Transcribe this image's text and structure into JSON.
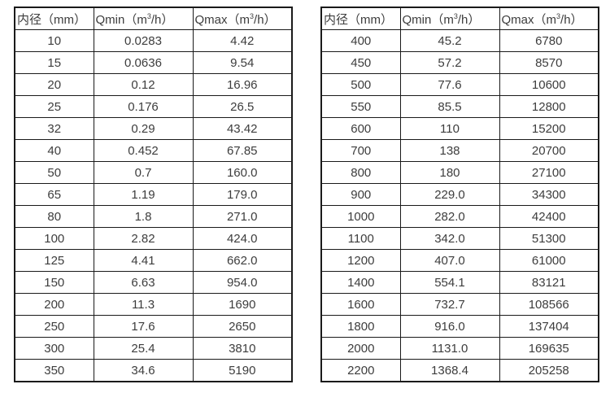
{
  "page": {
    "background_color": "#ffffff",
    "text_color": "#3d3d3d",
    "border_color": "#1a1a1a"
  },
  "tables": [
    {
      "headers": [
        {
          "pre": "内径（mm）",
          "sup": "",
          "post": ""
        },
        {
          "pre": "Qmin（m",
          "sup": "3",
          "post": "/h）"
        },
        {
          "pre": "Qmax（m",
          "sup": "3",
          "post": "/h）"
        }
      ],
      "rows": [
        [
          "10",
          "0.0283",
          "4.42"
        ],
        [
          "15",
          "0.0636",
          "9.54"
        ],
        [
          "20",
          "0.12",
          "16.96"
        ],
        [
          "25",
          "0.176",
          "26.5"
        ],
        [
          "32",
          "0.29",
          "43.42"
        ],
        [
          "40",
          "0.452",
          "67.85"
        ],
        [
          "50",
          "0.7",
          "160.0"
        ],
        [
          "65",
          "1.19",
          "179.0"
        ],
        [
          "80",
          "1.8",
          "271.0"
        ],
        [
          "100",
          "2.82",
          "424.0"
        ],
        [
          "125",
          "4.41",
          "662.0"
        ],
        [
          "150",
          "6.63",
          "954.0"
        ],
        [
          "200",
          "11.3",
          "1690"
        ],
        [
          "250",
          "17.6",
          "2650"
        ],
        [
          "300",
          "25.4",
          "3810"
        ],
        [
          "350",
          "34.6",
          "5190"
        ]
      ]
    },
    {
      "headers": [
        {
          "pre": "内径（mm）",
          "sup": "",
          "post": ""
        },
        {
          "pre": "Qmin（m",
          "sup": "3",
          "post": "/h）"
        },
        {
          "pre": "Qmax（m",
          "sup": "3",
          "post": "/h）"
        }
      ],
      "rows": [
        [
          "400",
          "45.2",
          "6780"
        ],
        [
          "450",
          "57.2",
          "8570"
        ],
        [
          "500",
          "77.6",
          "10600"
        ],
        [
          "550",
          "85.5",
          "12800"
        ],
        [
          "600",
          "110",
          "15200"
        ],
        [
          "700",
          "138",
          "20700"
        ],
        [
          "800",
          "180",
          "27100"
        ],
        [
          "900",
          "229.0",
          "34300"
        ],
        [
          "1000",
          "282.0",
          "42400"
        ],
        [
          "1100",
          "342.0",
          "51300"
        ],
        [
          "1200",
          "407.0",
          "61000"
        ],
        [
          "1400",
          "554.1",
          "83121"
        ],
        [
          "1600",
          "732.7",
          "108566"
        ],
        [
          "1800",
          "916.0",
          "137404"
        ],
        [
          "2000",
          "1131.0",
          "169635"
        ],
        [
          "2200",
          "1368.4",
          "205258"
        ]
      ]
    }
  ]
}
